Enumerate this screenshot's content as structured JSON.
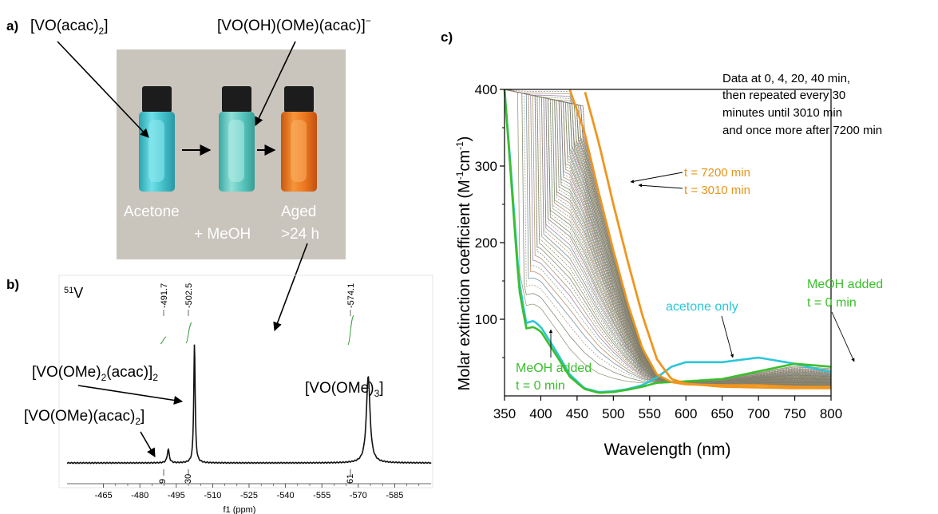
{
  "panel_a": {
    "panel_label": "a)",
    "compound_left": "[VO(acac)",
    "compound_left_sub": "2",
    "compound_left_close": "]",
    "compound_right": "[VO(OH)(OMe)(acac)]",
    "compound_right_sup": "−",
    "vial_labels": [
      "Acetone",
      "+ MeOH",
      "Aged",
      ">24 h"
    ],
    "colors": {
      "photo_bg": "#c9c4bc",
      "vial_blue": "#47c2cc",
      "vial_teal": "#5cc5bd",
      "vial_orange": "#e8731d",
      "cap": "#1c1c1c"
    }
  },
  "panel_b": {
    "panel_label": "b)",
    "nucleus_sup": "51",
    "nucleus": "V",
    "peak_labels": [
      "-491.7",
      "-502.5",
      "-574.1"
    ],
    "integrals": [
      "9",
      "30",
      "61"
    ],
    "species": [
      {
        "main": "[VO(OMe)",
        "sub": "2",
        "rest": "(acac)]",
        "sub2": "2"
      },
      {
        "main": "[VO(OMe)(acac)",
        "sub": "2",
        "rest": "]"
      },
      {
        "main": "[VO(OMe)",
        "sub": "3",
        "rest": "]"
      }
    ],
    "x_ticks": [
      "-465",
      "-480",
      "-495",
      "-510",
      "-525",
      "-540",
      "-555",
      "-570",
      "-585"
    ],
    "x_label": "f1 (ppm)"
  },
  "panel_c": {
    "panel_label": "c)",
    "y_label": "Molar extinction coefficient (M",
    "y_label_sup1": "-1",
    "y_label_mid": "cm",
    "y_label_sup2": "-1",
    "y_label_end": ")",
    "annotation_lines": [
      "Data at 0, 4, 20, 40 min,",
      "then repeated every 30",
      "minutes until 3010 min",
      "and once more after 7200 min"
    ],
    "label_7200": "t = 7200 min",
    "label_3010": "t = 3010 min",
    "label_acetone": "acetone only",
    "label_meoh_right_1": "MeOH added",
    "label_meoh_right_2": "t = 0 min",
    "label_meoh_left_1": "MeOH added",
    "label_meoh_left_2": "t = 0 min",
    "colors": {
      "orange": "#f0951e",
      "orange_text": "#e8941a",
      "acetone": "#2bc6d6",
      "meoh": "#3bbf2c",
      "bundle": "#7f7f5f"
    }
  },
  "chart_data": [
    {
      "type": "line",
      "title": "",
      "xlabel": "f1 (ppm)",
      "ylabel": "",
      "xlim": [
        -450,
        -600
      ],
      "x_ticks": [
        -465,
        -480,
        -495,
        -510,
        -525,
        -540,
        -555,
        -570,
        -585
      ],
      "peaks": [
        {
          "shift": -491.7,
          "integral": 9,
          "assignment": "[VO(OMe)(acac)2]"
        },
        {
          "shift": -502.5,
          "integral": 30,
          "assignment": "[VO(OMe)2(acac)]2"
        },
        {
          "shift": -574.1,
          "integral": 61,
          "assignment": "[VO(OMe)3]"
        }
      ]
    },
    {
      "type": "line",
      "title": "",
      "xlabel": "Wavelength (nm)",
      "ylabel": "Molar extinction coefficient (M-1cm-1)",
      "xlim": [
        350,
        800
      ],
      "ylim": [
        0,
        400
      ],
      "x_ticks": [
        350,
        400,
        450,
        500,
        550,
        600,
        650,
        700,
        750,
        800
      ],
      "y_ticks": [
        100,
        200,
        300,
        400
      ],
      "series": [
        {
          "name": "acetone only",
          "x": [
            350,
            360,
            370,
            380,
            390,
            400,
            420,
            440,
            460,
            480,
            500,
            520,
            540,
            560,
            580,
            600,
            650,
            700,
            750,
            800
          ],
          "values": [
            400,
            280,
            150,
            95,
            98,
            90,
            60,
            28,
            10,
            5,
            6,
            9,
            14,
            24,
            38,
            44,
            44,
            50,
            42,
            31
          ]
        },
        {
          "name": "MeOH added t = 0 min",
          "x": [
            350,
            360,
            370,
            380,
            390,
            400,
            420,
            440,
            460,
            480,
            500,
            520,
            540,
            560,
            580,
            600,
            650,
            700,
            750,
            800
          ],
          "values": [
            400,
            270,
            140,
            88,
            90,
            84,
            55,
            25,
            9,
            4,
            5,
            8,
            12,
            17,
            18,
            19,
            22,
            32,
            42,
            38
          ]
        },
        {
          "name": "t = 3010 min",
          "x": [
            440,
            460,
            480,
            500,
            520,
            540,
            560,
            580,
            600,
            650,
            700,
            750,
            800
          ],
          "values": [
            400,
            345,
            265,
            190,
            120,
            62,
            28,
            18,
            15,
            14,
            14,
            12,
            12
          ]
        },
        {
          "name": "t = 7200 min",
          "x": [
            460,
            480,
            500,
            520,
            540,
            560,
            580,
            600,
            650,
            700,
            750,
            800
          ],
          "values": [
            400,
            330,
            250,
            175,
            105,
            48,
            22,
            16,
            12,
            11,
            10,
            10
          ]
        }
      ]
    }
  ]
}
